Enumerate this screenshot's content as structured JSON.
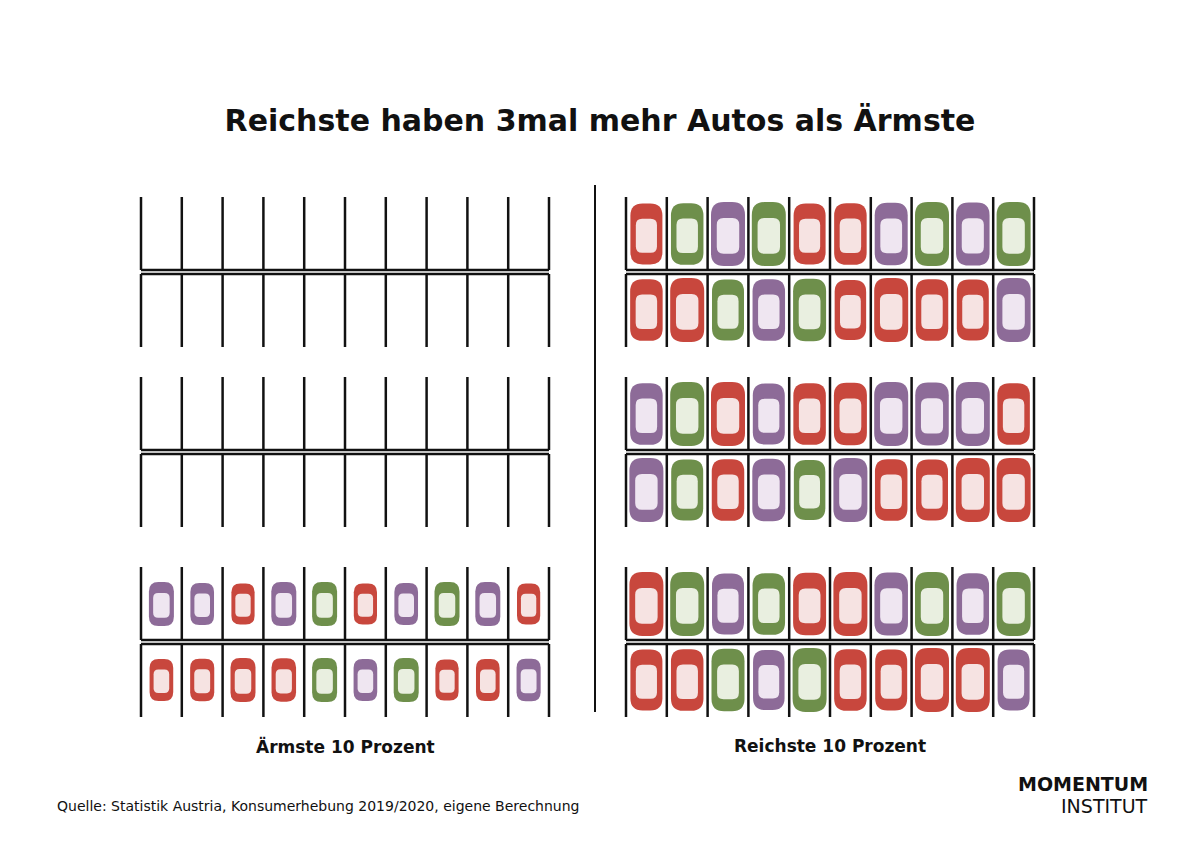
{
  "chart_data": {
    "type": "pictogram",
    "title": "Reichste haben 3mal mehr Autos als Ärmste",
    "categories": [
      "Ärmste 10 Prozent",
      "Reichste 10 Prozent"
    ],
    "values": [
      20,
      60
    ],
    "tick_labels": false
  },
  "source": "Quelle: Statistik Austria, Konsumerhebung 2019/2020, eigene Berechnung",
  "logo": [
    "MOMENTUM",
    "INSTITUT"
  ]
}
